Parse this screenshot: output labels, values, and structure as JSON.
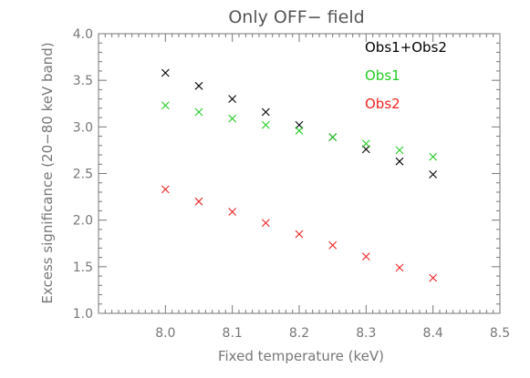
{
  "chart_data": {
    "type": "scatter",
    "title": "Only OFF− field",
    "xlabel": "Fixed temperature (keV)",
    "ylabel": "Excess significance (20−80 keV band)",
    "xlim": [
      7.9,
      8.5
    ],
    "ylim": [
      1.0,
      4.0
    ],
    "xticks": [
      "8.0",
      "8.1",
      "8.2",
      "8.3",
      "8.4",
      "8.5"
    ],
    "yticks": [
      "1.0",
      "1.5",
      "2.0",
      "2.5",
      "3.0",
      "3.5",
      "4.0"
    ],
    "grid": false,
    "legend_position": "top-right",
    "marker": "x",
    "series": [
      {
        "name": "Obs1+Obs2",
        "color": "#000000",
        "x": [
          8.0,
          8.05,
          8.1,
          8.15,
          8.2,
          8.25,
          8.3,
          8.35,
          8.4
        ],
        "y": [
          3.58,
          3.44,
          3.3,
          3.16,
          3.02,
          2.89,
          2.76,
          2.63,
          2.49
        ]
      },
      {
        "name": "Obs1",
        "color": "#22cc22",
        "x": [
          8.0,
          8.05,
          8.1,
          8.15,
          8.2,
          8.25,
          8.3,
          8.35,
          8.4
        ],
        "y": [
          3.23,
          3.16,
          3.09,
          3.02,
          2.96,
          2.89,
          2.82,
          2.75,
          2.68
        ]
      },
      {
        "name": "Obs2",
        "color": "#ee2222",
        "x": [
          8.0,
          8.05,
          8.1,
          8.15,
          8.2,
          8.25,
          8.3,
          8.35,
          8.4
        ],
        "y": [
          2.33,
          2.2,
          2.09,
          1.97,
          1.85,
          1.73,
          1.61,
          1.49,
          1.38
        ]
      }
    ]
  }
}
